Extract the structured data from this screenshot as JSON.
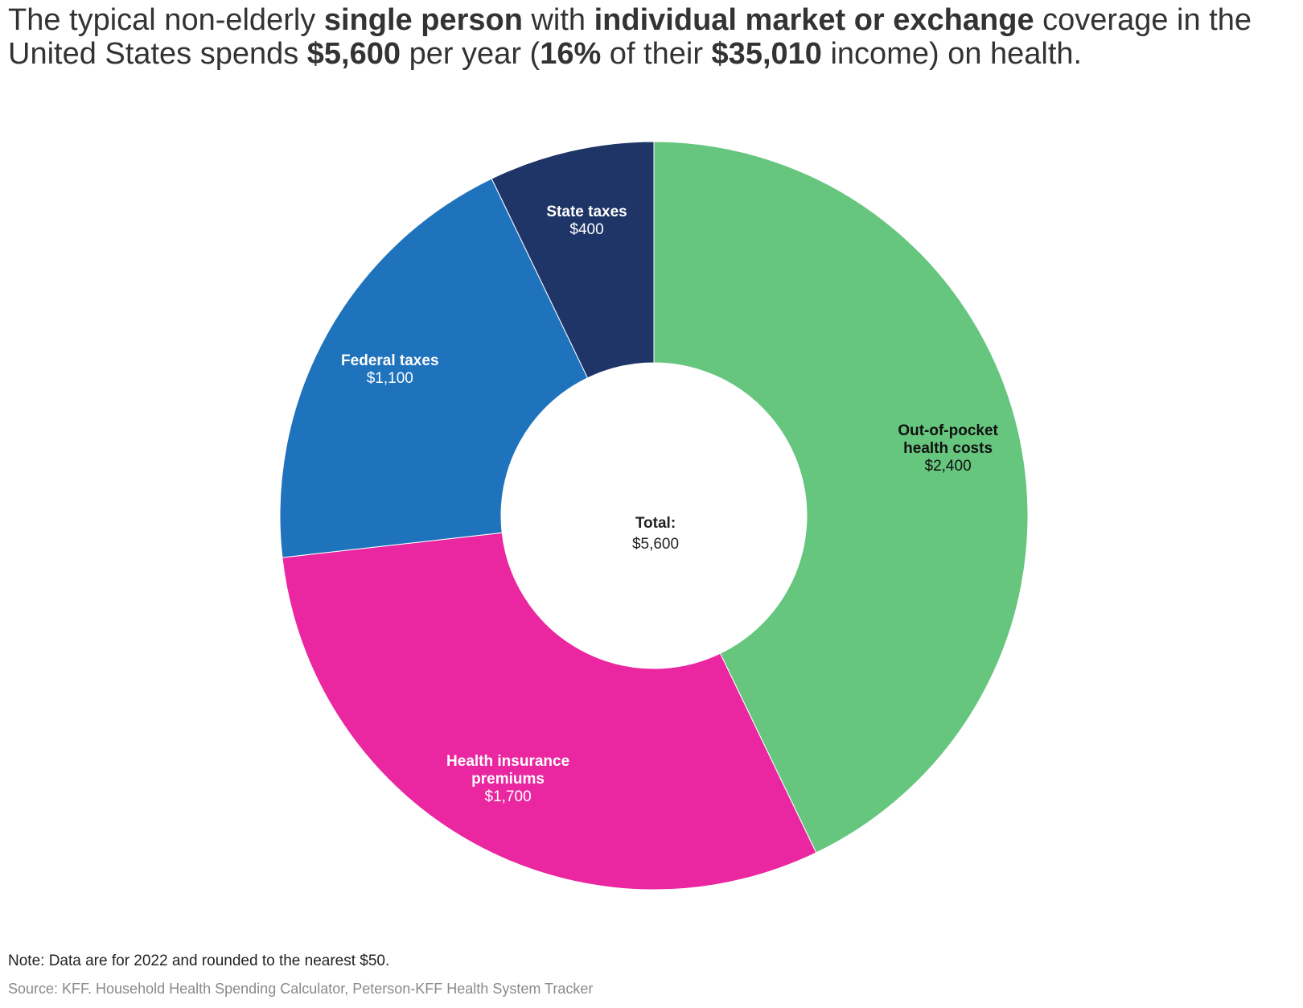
{
  "title": {
    "part1": "The typical non-elderly ",
    "bold1": "single person",
    "part2": " with ",
    "bold2": "individual market or exchange",
    "part3": " coverage in the United States spends ",
    "bold3": "$5,600",
    "part4": " per year (",
    "bold4": "16%",
    "part5": " of their ",
    "bold5": "$35,010",
    "part6": " income) on health."
  },
  "chart_data": {
    "type": "pie",
    "variant": "donut",
    "title": "The typical non-elderly single person with individual market or exchange coverage in the United States spends $5,600 per year (16% of their $35,010 income) on health.",
    "center_label": {
      "name": "Total:",
      "value": "$5,600"
    },
    "total": 5600,
    "slices": [
      {
        "name": "Out-of-pocket health costs",
        "name_lines": [
          "Out-of-pocket",
          "health costs"
        ],
        "value": 2400,
        "display": "$2,400",
        "color": "#66c67e",
        "label_theme": "dark"
      },
      {
        "name": "Health insurance premiums",
        "name_lines": [
          "Health insurance",
          "premiums"
        ],
        "value": 1700,
        "display": "$1,700",
        "color": "#ea26a0",
        "label_theme": "light"
      },
      {
        "name": "Federal taxes",
        "name_lines": [
          "Federal taxes"
        ],
        "value": 1100,
        "display": "$1,100",
        "color": "#1f73bd",
        "label_theme": "light"
      },
      {
        "name": "State taxes",
        "name_lines": [
          "State taxes"
        ],
        "value": 400,
        "display": "$400",
        "color": "#1f3567",
        "label_theme": "light"
      }
    ]
  },
  "note": "Note: Data are for 2022 and rounded to the nearest $50.",
  "source": "Source: KFF. Household Health Spending Calculator, Peterson-KFF Health System Tracker"
}
